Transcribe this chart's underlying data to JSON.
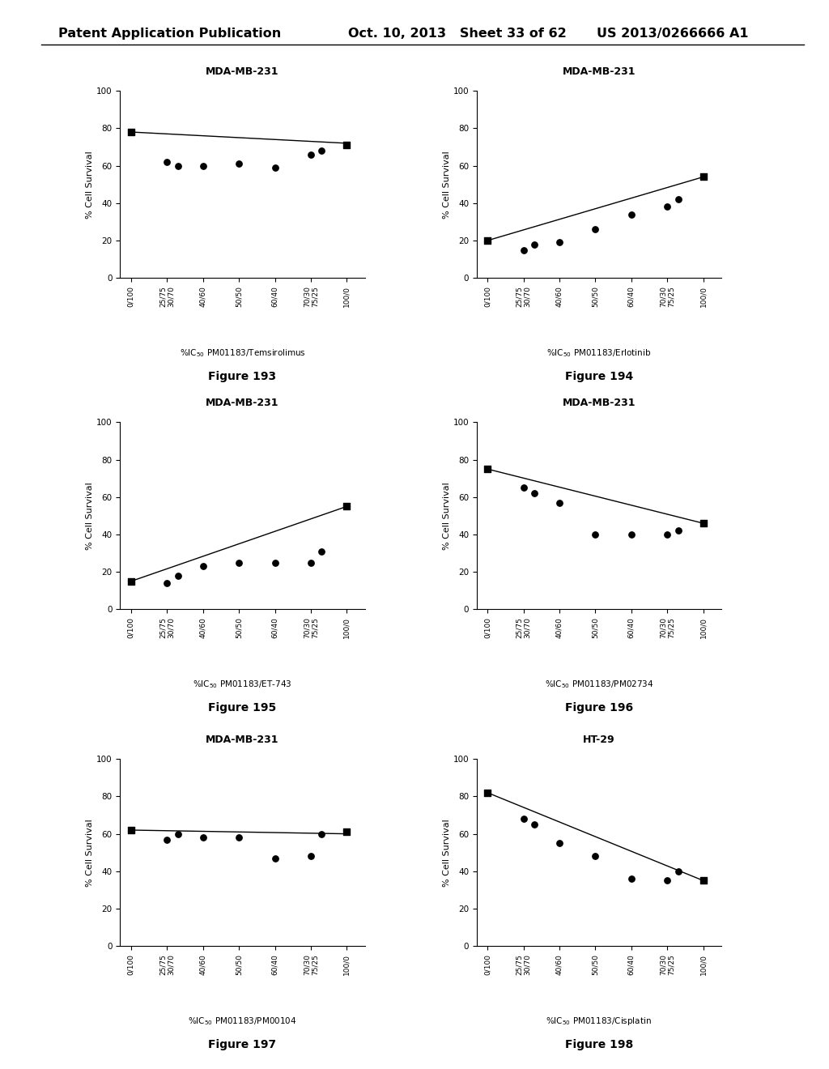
{
  "header_left": "Patent Application Publication",
  "header_mid": "Oct. 10, 2013   Sheet 33 of 62",
  "header_right": "US 2013/0266666 A1",
  "figures": [
    {
      "title": "MDA-MB-231",
      "xlabel": "%IC50 PM01183/Temsirolimus",
      "ylabel": "% Cell Survival",
      "fig_label": "Figure 193",
      "x_ticklabels": [
        "0/100",
        "25/75\n30/70",
        "40/60",
        "50/50",
        "60/40",
        "70/30\n75/25",
        "100/0"
      ],
      "x_tickpos": [
        0,
        1,
        2,
        3,
        4,
        5,
        6
      ],
      "scatter_x": [
        0,
        1,
        1.3,
        2,
        3,
        4,
        5,
        5.3,
        6
      ],
      "scatter_y": [
        78,
        62,
        60,
        60,
        61,
        59,
        66,
        68,
        71
      ],
      "line_x": [
        0,
        6
      ],
      "line_y": [
        78,
        72
      ],
      "ylim": [
        0,
        100
      ],
      "yticks": [
        0,
        20,
        40,
        60,
        80,
        100
      ]
    },
    {
      "title": "MDA-MB-231",
      "xlabel": "%IC50 PM01183/Erlotinib",
      "ylabel": "% Cell Survival",
      "fig_label": "Figure 194",
      "x_ticklabels": [
        "0/100",
        "25/75\n30/70",
        "40/60",
        "50/50",
        "60/40",
        "70/30\n75/25",
        "100/0"
      ],
      "x_tickpos": [
        0,
        1,
        2,
        3,
        4,
        5,
        6
      ],
      "scatter_x": [
        0,
        1,
        1.3,
        2,
        3,
        4,
        5,
        5.3,
        6
      ],
      "scatter_y": [
        20,
        15,
        18,
        19,
        26,
        34,
        38,
        42,
        54
      ],
      "line_x": [
        0,
        6
      ],
      "line_y": [
        20,
        54
      ],
      "ylim": [
        0,
        100
      ],
      "yticks": [
        0,
        20,
        40,
        60,
        80,
        100
      ]
    },
    {
      "title": "MDA-MB-231",
      "xlabel": "%IC50 PM01183/ET-743",
      "ylabel": "% Cell Survival",
      "fig_label": "Figure 195",
      "x_ticklabels": [
        "0/100",
        "25/75\n30/70",
        "40/60",
        "50/50",
        "60/40",
        "70/30\n75/25",
        "100/0"
      ],
      "x_tickpos": [
        0,
        1,
        2,
        3,
        4,
        5,
        6
      ],
      "scatter_x": [
        0,
        1,
        1.3,
        2,
        3,
        4,
        5,
        5.3,
        6
      ],
      "scatter_y": [
        15,
        14,
        18,
        23,
        25,
        25,
        25,
        31,
        55
      ],
      "line_x": [
        0,
        6
      ],
      "line_y": [
        15,
        55
      ],
      "ylim": [
        0,
        100
      ],
      "yticks": [
        0,
        20,
        40,
        60,
        80,
        100
      ]
    },
    {
      "title": "MDA-MB-231",
      "xlabel": "%IC50 PM01183/PM02734",
      "ylabel": "% Cell Survival",
      "fig_label": "Figure 196",
      "x_ticklabels": [
        "0/100",
        "25/75\n30/70",
        "40/60",
        "50/50",
        "60/40",
        "70/30\n75/25",
        "100/0"
      ],
      "x_tickpos": [
        0,
        1,
        2,
        3,
        4,
        5,
        6
      ],
      "scatter_x": [
        0,
        1,
        1.3,
        2,
        3,
        4,
        5,
        5.3,
        6
      ],
      "scatter_y": [
        75,
        65,
        62,
        57,
        40,
        40,
        40,
        42,
        46
      ],
      "line_x": [
        0,
        6
      ],
      "line_y": [
        75,
        46
      ],
      "ylim": [
        0,
        100
      ],
      "yticks": [
        0,
        20,
        40,
        60,
        80,
        100
      ]
    },
    {
      "title": "MDA-MB-231",
      "xlabel": "%IC50 PM01183/PM00104",
      "ylabel": "% Cell Survival",
      "fig_label": "Figure 197",
      "x_ticklabels": [
        "0/100",
        "25/75\n30/70",
        "40/60",
        "50/50",
        "60/40",
        "70/30\n75/25",
        "100/0"
      ],
      "x_tickpos": [
        0,
        1,
        2,
        3,
        4,
        5,
        6
      ],
      "scatter_x": [
        0,
        1,
        1.3,
        2,
        3,
        4,
        5,
        5.3,
        6
      ],
      "scatter_y": [
        62,
        57,
        60,
        58,
        58,
        47,
        48,
        60,
        61
      ],
      "line_x": [
        0,
        6
      ],
      "line_y": [
        62,
        60
      ],
      "ylim": [
        0,
        100
      ],
      "yticks": [
        0,
        20,
        40,
        60,
        80,
        100
      ]
    },
    {
      "title": "HT-29",
      "xlabel": "%IC50 PM01183/Cisplatin",
      "ylabel": "% Cell Survival",
      "fig_label": "Figure 198",
      "x_ticklabels": [
        "0/100",
        "25/75\n30/70",
        "40/60",
        "50/50",
        "60/40",
        "70/30\n75/25",
        "100/0"
      ],
      "x_tickpos": [
        0,
        1,
        2,
        3,
        4,
        5,
        6
      ],
      "scatter_x": [
        0,
        1,
        1.3,
        2,
        3,
        4,
        5,
        5.3,
        6
      ],
      "scatter_y": [
        82,
        68,
        65,
        55,
        48,
        36,
        35,
        40,
        35
      ],
      "line_x": [
        0,
        6
      ],
      "line_y": [
        82,
        35
      ],
      "ylim": [
        0,
        100
      ],
      "yticks": [
        0,
        20,
        40,
        60,
        80,
        100
      ]
    }
  ],
  "ic50_label_prefix": "%IC",
  "ic50_subscript": "50"
}
